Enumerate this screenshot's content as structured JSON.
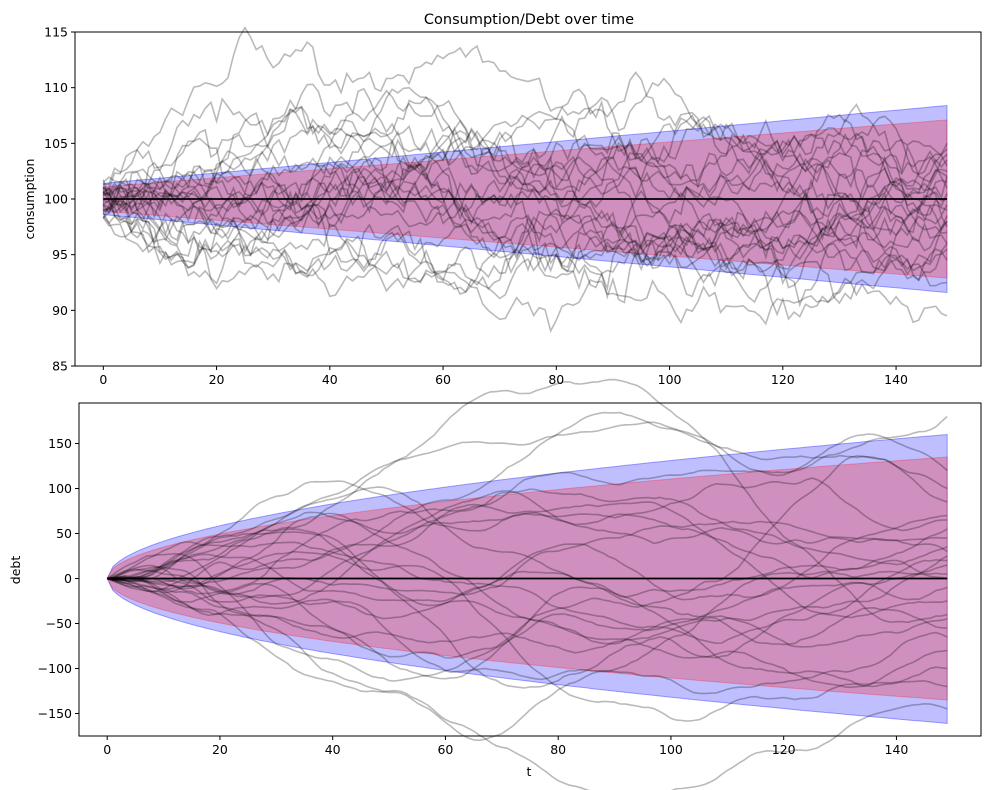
{
  "colors": {
    "band_outer": "#0000ff",
    "band_inner": "#ff0000",
    "sample_paths": "#808080",
    "mean_line": "#000000"
  },
  "chart_data": [
    {
      "type": "line",
      "title": "Consumption/Debt over time",
      "xlabel": "",
      "ylabel": "consumption",
      "xlim": [
        -5,
        155
      ],
      "ylim": [
        85,
        115
      ],
      "xticks": [
        0,
        20,
        40,
        60,
        80,
        100,
        120,
        140
      ],
      "yticks": [
        85,
        90,
        95,
        100,
        105,
        110,
        115
      ],
      "grid": false,
      "mean": 100,
      "t_range": [
        0,
        149
      ],
      "band_outer": {
        "color": "blue",
        "alpha": 0.25,
        "lower": [
          98.6,
          91.6
        ],
        "upper": [
          101.4,
          108.4
        ]
      },
      "band_inner": {
        "color": "red",
        "alpha": 0.25,
        "lower": [
          98.9,
          92.9
        ],
        "upper": [
          101.1,
          107.1
        ]
      },
      "sample_path_count": 25,
      "sample_path_endpoints": [
        89.5,
        92.5,
        94.5,
        95.5,
        96,
        97,
        97.5,
        98,
        98.5,
        99,
        99.5,
        100,
        100.5,
        101,
        101.5,
        102,
        102.5,
        103,
        103.5,
        104,
        104.5,
        105,
        102,
        98,
        96
      ]
    },
    {
      "type": "line",
      "title": "",
      "xlabel": "t",
      "ylabel": "debt",
      "xlim": [
        -5,
        155
      ],
      "ylim": [
        -175,
        195
      ],
      "xticks": [
        0,
        20,
        40,
        60,
        80,
        100,
        120,
        140
      ],
      "yticks": [
        -150,
        -100,
        -50,
        0,
        50,
        100,
        150
      ],
      "grid": false,
      "mean": 0,
      "t_range": [
        0,
        149
      ],
      "band_outer": {
        "color": "blue",
        "alpha": 0.25,
        "lower": [
          0,
          -161
        ],
        "upper": [
          0,
          160
        ]
      },
      "band_inner": {
        "color": "red",
        "alpha": 0.25,
        "lower": [
          0,
          -135
        ],
        "upper": [
          0,
          135
        ]
      },
      "sample_path_count": 25,
      "sample_path_endpoints": [
        180,
        120,
        100,
        85,
        70,
        65,
        55,
        45,
        35,
        30,
        25,
        20,
        15,
        5,
        0,
        -10,
        -25,
        -40,
        -45,
        -55,
        -65,
        -80,
        -100,
        -120,
        -145
      ]
    }
  ]
}
